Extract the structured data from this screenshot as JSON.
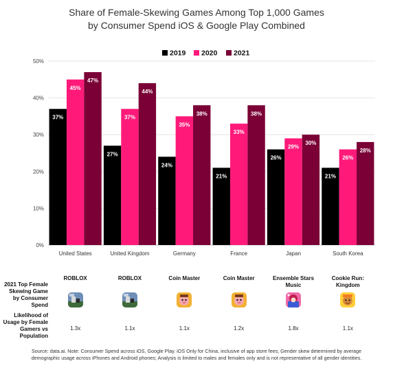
{
  "chart_data": {
    "type": "bar",
    "title_lines": [
      "Share of Female-Skewing Games Among Top 1,000 Games",
      "by Consumer Spend iOS & Google Play Combined"
    ],
    "categories": [
      "United States",
      "United Kingdom",
      "Germany",
      "France",
      "Japan",
      "South Korea"
    ],
    "series": [
      {
        "name": "2019",
        "color": "#000000",
        "values": [
          37,
          27,
          24,
          21,
          26,
          21
        ]
      },
      {
        "name": "2020",
        "color": "#ff1a7a",
        "values": [
          45,
          37,
          35,
          33,
          29,
          26
        ]
      },
      {
        "name": "2021",
        "color": "#7a0035",
        "values": [
          47,
          44,
          38,
          38,
          30,
          28
        ]
      }
    ],
    "y_ticks": [
      "0%",
      "10%",
      "20%",
      "30%",
      "40%",
      "50%"
    ],
    "ylim": [
      0,
      50
    ],
    "value_suffix": "%",
    "legend_position": "top-center",
    "grid": true
  },
  "table": {
    "row1_label": "2021 Top Female Skewing Game by Consumer Spend",
    "row2_label": "Likelihood of Usage by Female Gamers vs Population",
    "games": [
      {
        "name": "ROBLOX",
        "icon": "roblox-icon",
        "likelihood": "1.3x"
      },
      {
        "name": "ROBLOX",
        "icon": "roblox-icon",
        "likelihood": "1.1x"
      },
      {
        "name": "Coin Master",
        "icon": "coin-master-icon",
        "likelihood": "1.1x"
      },
      {
        "name": "Coin Master",
        "icon": "coin-master-icon",
        "likelihood": "1.2x"
      },
      {
        "name": "Ensemble Stars Music",
        "icon": "ensemble-stars-icon",
        "likelihood": "1.8x"
      },
      {
        "name": "Cookie Run: Kingdom",
        "icon": "cookie-run-icon",
        "likelihood": "1.1x"
      }
    ]
  },
  "source_note": "Source: data.ai. Note: Consumer Spend across iOS, Google Play. iOS Only for China, inclusive of app store fees; Gender skew determined by average demographic usage across iPhones and Android phones; Analysis is limited to males and females only and is not representative of all gender identities."
}
